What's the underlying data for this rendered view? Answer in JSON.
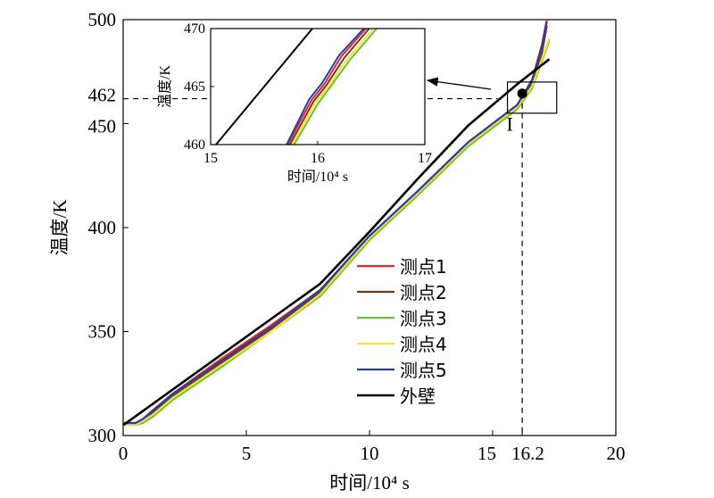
{
  "chart_data": {
    "type": "line",
    "xlabel": "时间/10⁴ s",
    "ylabel": "温度/K",
    "xlim": [
      0,
      20
    ],
    "ylim": [
      300,
      500
    ],
    "xticks": [
      {
        "value": 0,
        "label": "0"
      },
      {
        "value": 5,
        "label": "5"
      },
      {
        "value": 10,
        "label": "10"
      },
      {
        "value": 15,
        "label": "15"
      },
      {
        "value": 16.2,
        "label": "16.2"
      },
      {
        "value": 20,
        "label": "20"
      }
    ],
    "yticks": [
      {
        "value": 300,
        "label": "300"
      },
      {
        "value": 350,
        "label": "350"
      },
      {
        "value": 400,
        "label": "400"
      },
      {
        "value": 450,
        "label": "450"
      },
      {
        "value": 462,
        "label": "462"
      },
      {
        "value": 500,
        "label": "500"
      }
    ],
    "grid": false,
    "legend_position": "center",
    "series": [
      {
        "name": "测点1",
        "color": "#e8262b",
        "x": [
          0,
          0.5,
          0.8,
          1.2,
          2,
          4,
          6,
          8,
          10,
          12,
          14,
          15,
          16,
          16.3,
          16.6,
          17,
          17.2
        ],
        "y": [
          306,
          306,
          308,
          312,
          320,
          337,
          353,
          370,
          396,
          418,
          441,
          450,
          459,
          465,
          471,
          488,
          500
        ]
      },
      {
        "name": "测点2",
        "color": "#6b3f18",
        "x": [
          0,
          0.5,
          0.8,
          1.2,
          2,
          4,
          6,
          8,
          10,
          12,
          14,
          15,
          16,
          16.3,
          16.6,
          17,
          17.2
        ],
        "y": [
          306,
          306,
          307,
          311,
          319,
          335,
          351,
          369,
          395,
          417,
          440,
          449,
          458,
          464,
          469,
          484,
          497
        ]
      },
      {
        "name": "测点3",
        "color": "#6abf3a",
        "x": [
          0,
          0.5,
          0.8,
          1.2,
          2,
          4,
          6,
          8,
          10,
          12,
          14,
          15,
          16,
          16.3,
          16.6,
          17,
          17.3
        ],
        "y": [
          305,
          305,
          306,
          309,
          317,
          333,
          350,
          367,
          394,
          416,
          439,
          448,
          457,
          462,
          467,
          480,
          490
        ]
      },
      {
        "name": "测点4",
        "color": "#f3e33a",
        "x": [
          0,
          0.5,
          0.8,
          1.2,
          2,
          4,
          6,
          8,
          10,
          12,
          14,
          15,
          16,
          16.3,
          16.6,
          17,
          17.3
        ],
        "y": [
          305,
          305,
          307,
          310,
          318,
          334,
          350,
          368,
          395,
          417,
          440,
          449,
          458,
          463,
          468,
          481,
          491
        ]
      },
      {
        "name": "测点5",
        "color": "#2b3f9e",
        "x": [
          0,
          0.5,
          0.8,
          1.2,
          2,
          4,
          6,
          8,
          10,
          12,
          14,
          15,
          16,
          16.3,
          16.6,
          17,
          17.2
        ],
        "y": [
          306,
          306,
          308,
          312,
          320,
          336,
          352,
          370,
          396,
          418,
          441,
          450,
          459,
          465,
          471,
          487,
          499
        ]
      },
      {
        "name": "外壁",
        "color": "#000000",
        "x": [
          0,
          2,
          4,
          6,
          8,
          10,
          12,
          14,
          16,
          17.3
        ],
        "y": [
          305,
          322,
          339,
          356,
          373,
          398,
          424,
          449,
          469,
          481
        ]
      }
    ],
    "marker": {
      "label": "I",
      "x": 16.2,
      "y": 464.5
    },
    "zoom_box": {
      "xlim": [
        15.6,
        17.6
      ],
      "ylim": [
        455,
        470
      ]
    },
    "inset": {
      "xlim": [
        15,
        17
      ],
      "ylim": [
        460,
        470
      ],
      "xlabel": "时间/10⁴ s",
      "ylabel": "温度/K",
      "xticks": [
        {
          "value": 15,
          "label": "15"
        },
        {
          "value": 16,
          "label": "16"
        },
        {
          "value": 17,
          "label": "17"
        }
      ],
      "yticks": [
        {
          "value": 460,
          "label": "460"
        },
        {
          "value": 465,
          "label": "465"
        },
        {
          "value": 470,
          "label": "470"
        }
      ],
      "series": [
        {
          "name": "外壁",
          "color": "#000000",
          "x": [
            15.05,
            15.95
          ],
          "y": [
            460,
            470
          ]
        },
        {
          "name": "测点3",
          "color": "#6abf3a",
          "x": [
            15.78,
            16.0,
            16.12,
            16.3,
            16.55
          ],
          "y": [
            460,
            463.5,
            465,
            467.3,
            470
          ]
        },
        {
          "name": "测点4",
          "color": "#f3e33a",
          "x": [
            15.76,
            15.98,
            16.1,
            16.28,
            16.52
          ],
          "y": [
            460,
            463.6,
            465,
            467.4,
            470
          ]
        },
        {
          "name": "测点2",
          "color": "#6b3f18",
          "x": [
            15.74,
            15.96,
            16.08,
            16.25,
            16.48
          ],
          "y": [
            460,
            463.7,
            465.1,
            467.5,
            470
          ]
        },
        {
          "name": "测点1",
          "color": "#e8262b",
          "x": [
            15.72,
            15.94,
            16.06,
            16.22,
            16.45
          ],
          "y": [
            460,
            463.8,
            465.2,
            467.6,
            470
          ]
        },
        {
          "name": "测点5",
          "color": "#2b3f9e",
          "x": [
            15.71,
            15.92,
            16.04,
            16.2,
            16.43
          ],
          "y": [
            460,
            463.9,
            465.3,
            467.7,
            470
          ]
        }
      ]
    }
  }
}
